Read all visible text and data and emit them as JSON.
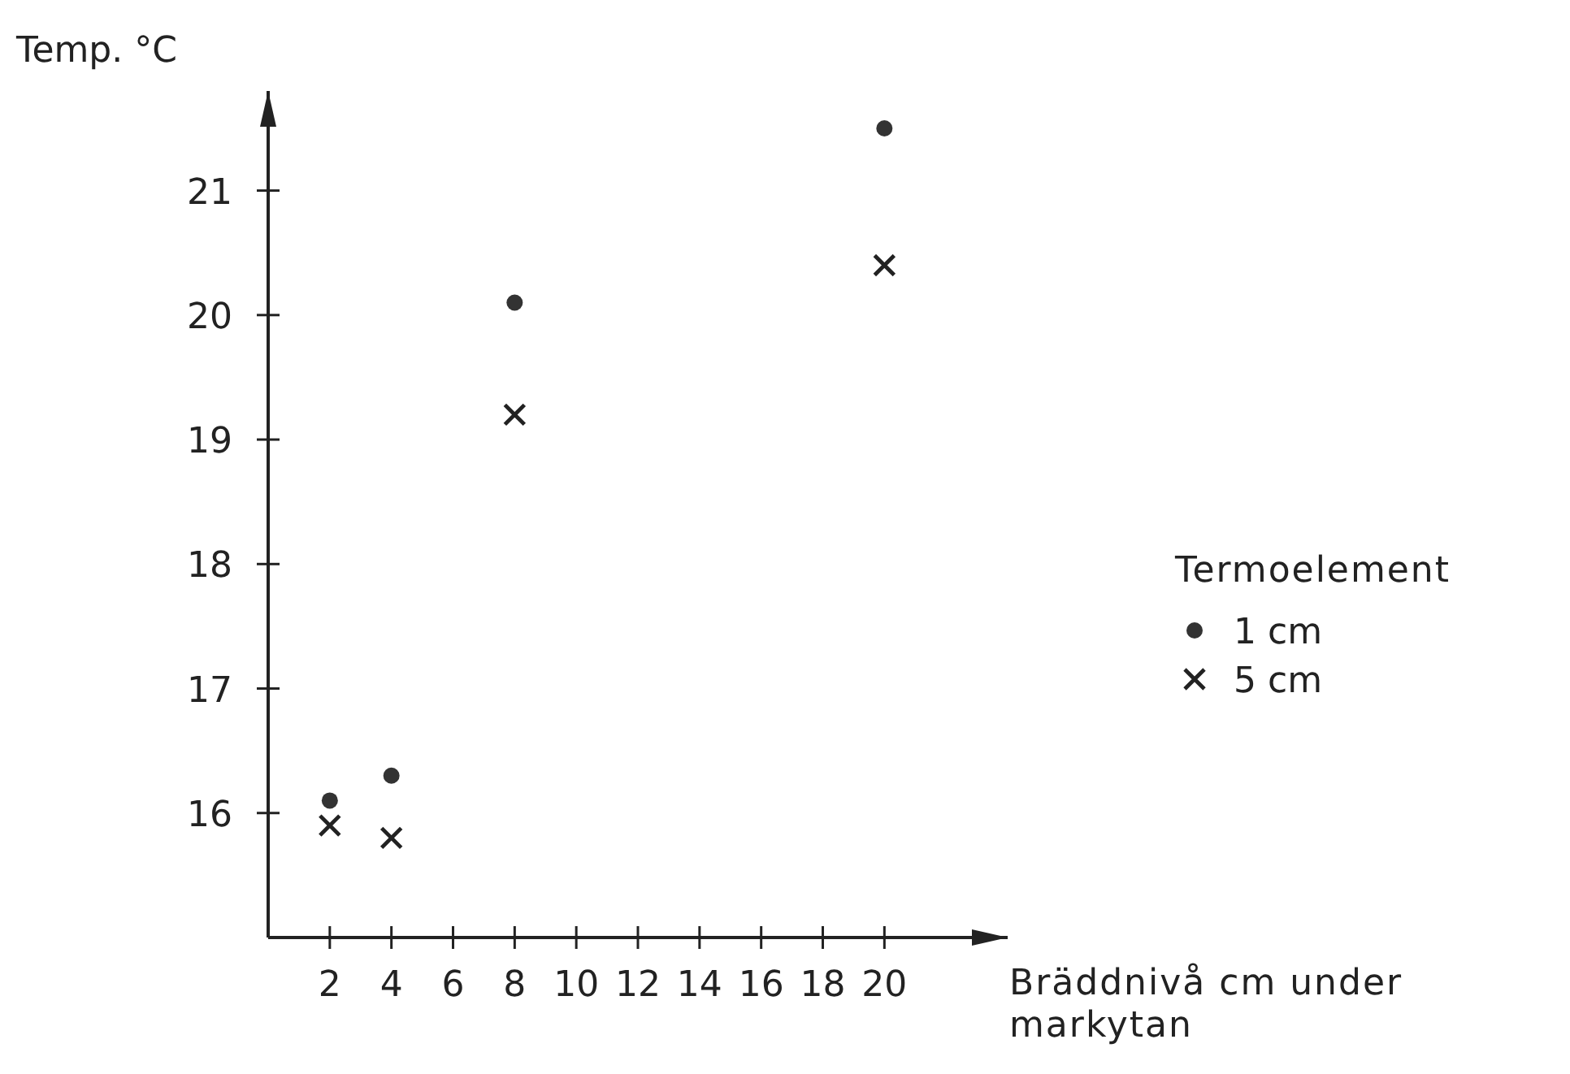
{
  "chart_data": {
    "type": "scatter",
    "xlabel": "Bräddnivå cm under markytan",
    "ylabel": "Temp. °C",
    "legend_title": "Termoelement",
    "x": [
      2,
      4,
      8,
      20
    ],
    "series": [
      {
        "name": "1 cm",
        "color": "#333333",
        "marker": "circle",
        "values": [
          16.1,
          16.3,
          20.1,
          21.5
        ]
      },
      {
        "name": "5 cm",
        "color": "#222222",
        "marker": "cross",
        "values": [
          15.9,
          15.8,
          19.2,
          20.4
        ]
      }
    ],
    "xlim": [
      0,
      24
    ],
    "xticks": [
      2,
      4,
      6,
      8,
      10,
      12,
      14,
      16,
      18,
      20
    ],
    "ylim": [
      15,
      21.8
    ],
    "yticks": [
      16,
      17,
      18,
      19,
      20,
      21
    ],
    "grid": false,
    "legend": "right"
  }
}
